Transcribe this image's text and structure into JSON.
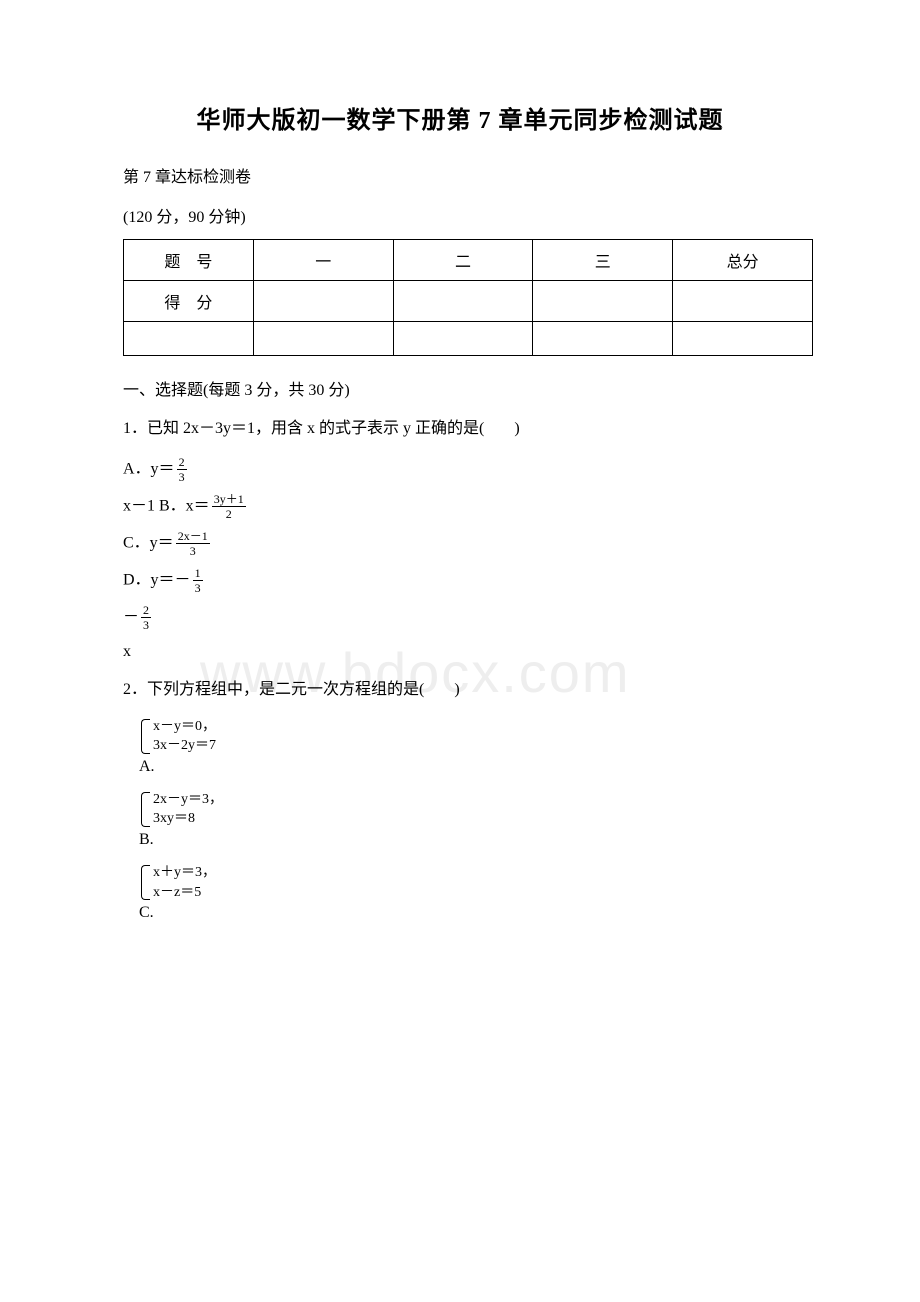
{
  "title": "华师大版初一数学下册第 7 章单元同步检测试题",
  "subtitle": "第 7 章达标检测卷",
  "info": "(120 分，90 分钟)",
  "watermark": "www.bdocx.com",
  "score_table": {
    "row1_label": "题号",
    "row2_label": "得分",
    "cols": [
      "一",
      "二",
      "三",
      "总分"
    ]
  },
  "section1_heading": "一、选择题(每题 3 分，共 30 分)",
  "q1": {
    "text": "1．已知 2x－3y＝1，用含 x 的式子表示 y 正确的是(",
    "text_end": ")",
    "optA_prefix": "A．y＝",
    "optA_frac_num": "2",
    "optA_frac_den": "3",
    "optB_line": "x－1 B．x＝",
    "optB_frac_num": "3y＋1",
    "optB_frac_den": "2",
    "optC_prefix": " C．y＝",
    "optC_frac_num": "2x－1",
    "optC_frac_den": "3",
    "optD_prefix": " D．y＝－",
    "optD_frac_num": "1",
    "optD_frac_den": "3",
    "optD_cont_prefix": "－",
    "optD_cont_frac_num": "2",
    "optD_cont_frac_den": "3",
    "optD_tail": "x"
  },
  "q2": {
    "text": "2．下列方程组中，是二元一次方程组的是(",
    "text_end": ")",
    "optA": {
      "label": "A.",
      "line1": "x－y＝0，",
      "line2": "3x－2y＝7"
    },
    "optB": {
      "label": "B.",
      "line1": "2x－y＝3，",
      "line2": "3xy＝8"
    },
    "optC": {
      "label": "C.",
      "line1": "x＋y＝3，",
      "line2": "x－z＝5"
    }
  },
  "colors": {
    "text": "#000000",
    "background": "#ffffff",
    "watermark": "#eeeeee",
    "border": "#000000"
  }
}
